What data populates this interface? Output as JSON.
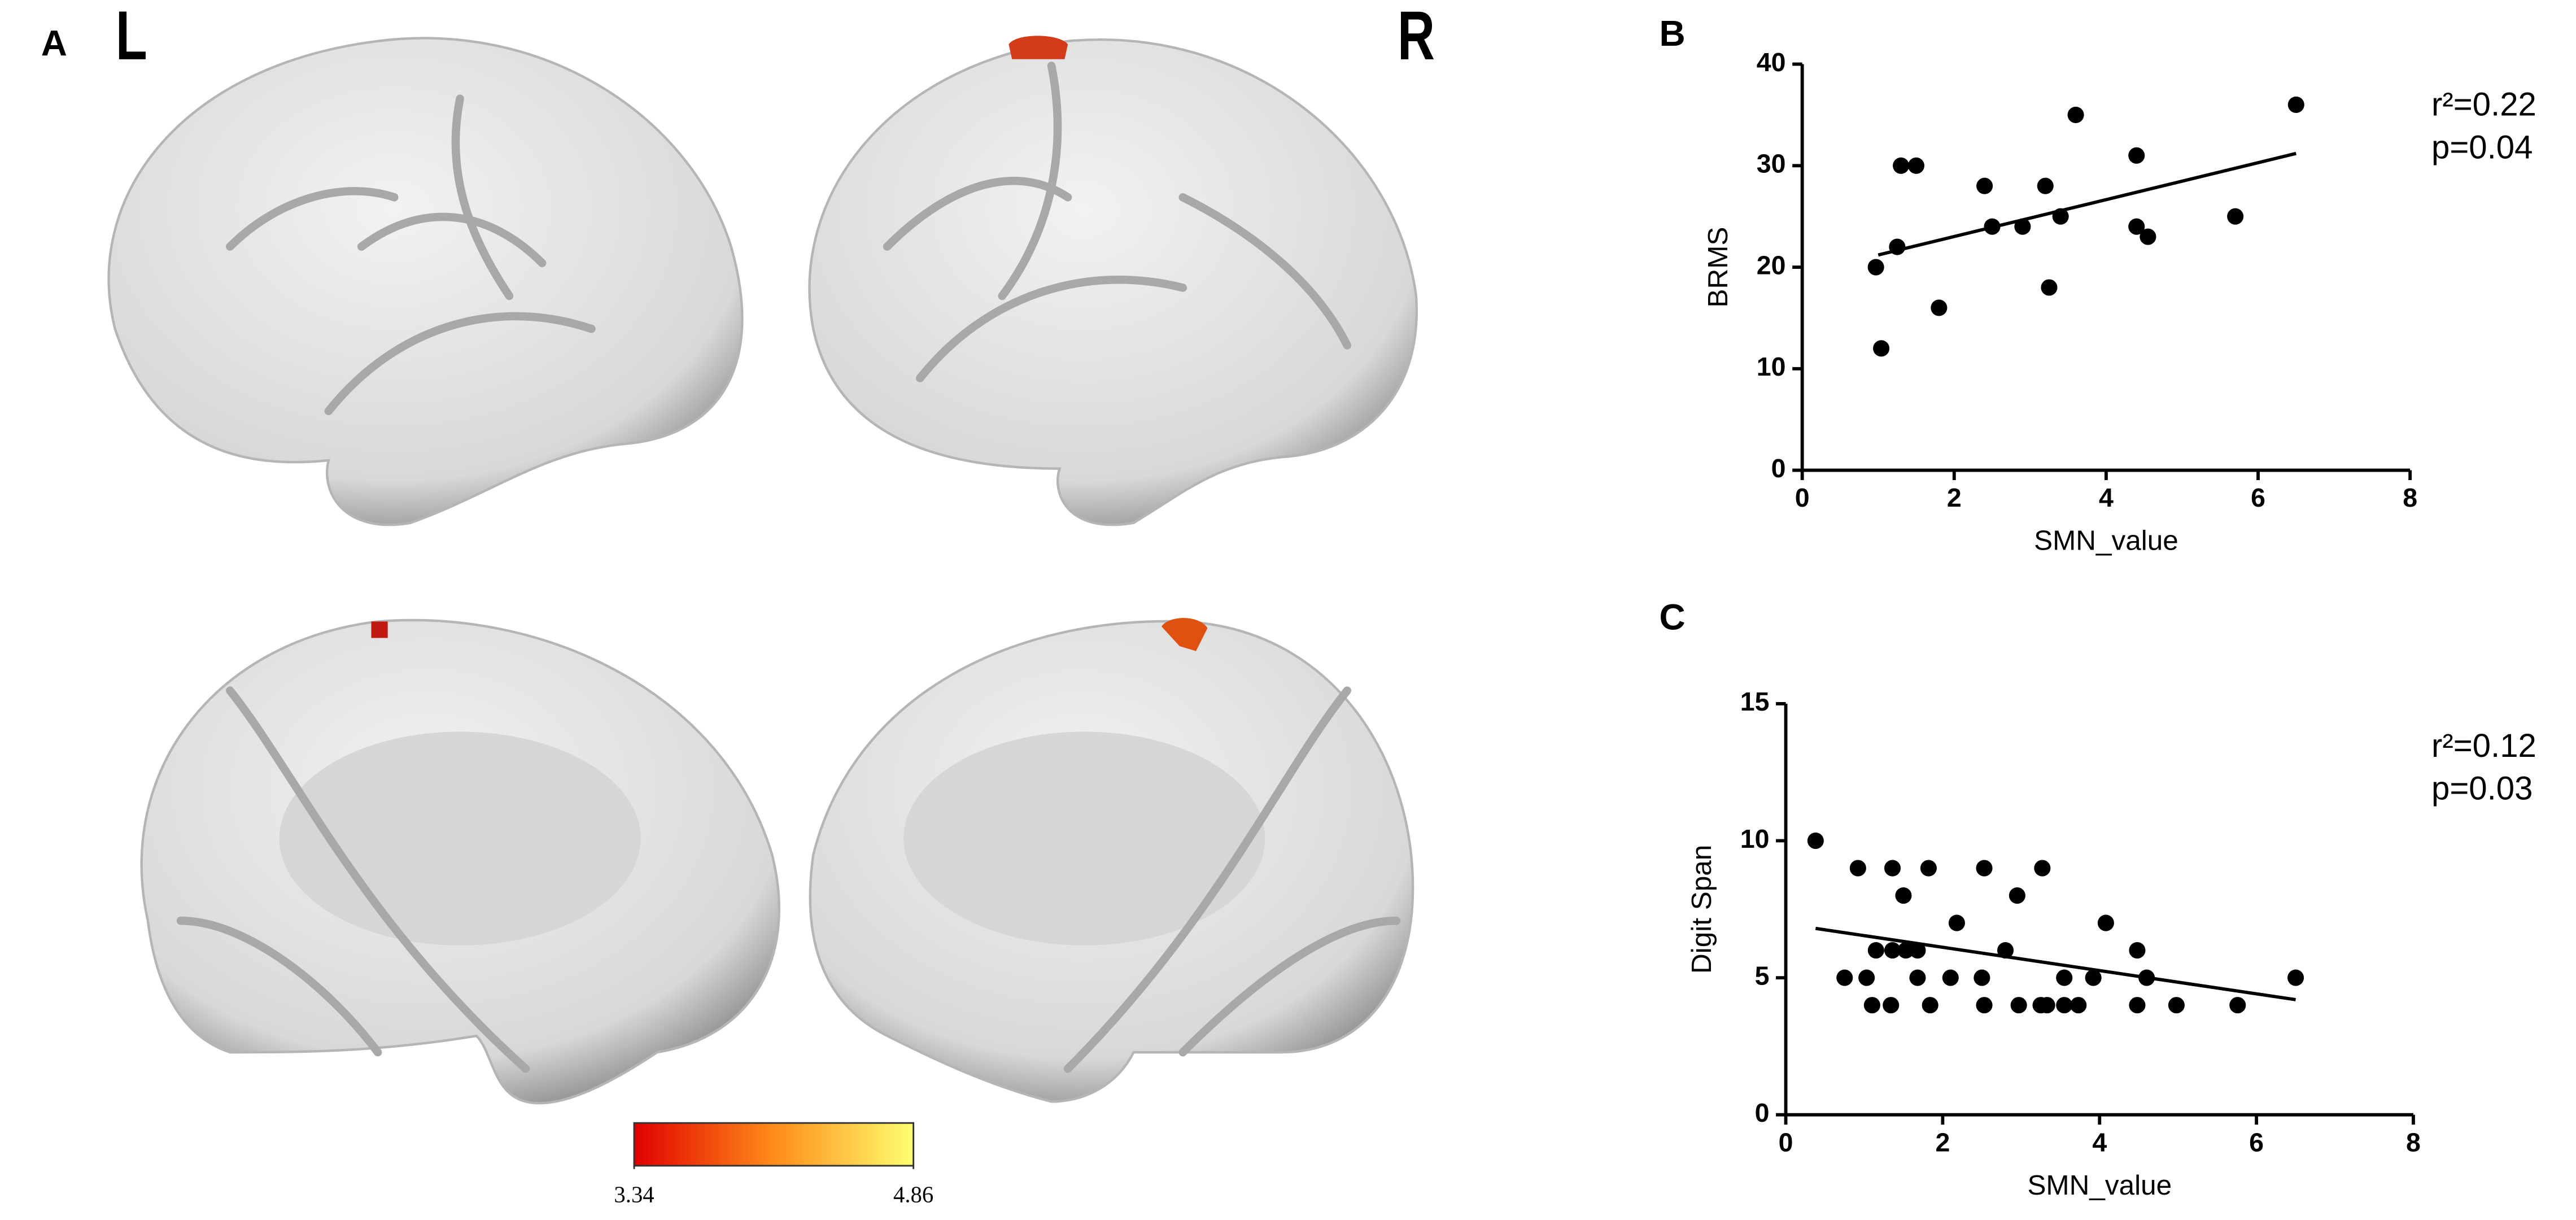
{
  "chart_data": [
    {
      "type": "brain-map",
      "panel_label": "A",
      "hemisphere_labels": [
        "L",
        "R"
      ],
      "colorbar": {
        "lim": [
          3.34,
          4.86
        ],
        "ticks": [
          3.34,
          4.86
        ],
        "colors": [
          "#e00000",
          "#ff8c1a",
          "#ffff70"
        ]
      }
    },
    {
      "type": "scatter",
      "panel_label": "B",
      "x_label": "SMN_value",
      "y_label": "BRMS",
      "annotations": [
        "r²=0.22",
        "p=0.04"
      ],
      "color": "#000000",
      "xlim": [
        0,
        8
      ],
      "xticks": [
        0,
        2,
        4,
        6,
        8
      ],
      "ylim": [
        0,
        40
      ],
      "yticks": [
        0,
        10,
        20,
        30,
        40
      ],
      "x": [
        0.97,
        1.04,
        1.25,
        1.3,
        1.5,
        1.8,
        2.4,
        2.5,
        2.9,
        3.2,
        3.25,
        3.4,
        3.6,
        4.4,
        4.4,
        4.55,
        5.7,
        6.5
      ],
      "values": [
        20,
        12,
        22,
        30,
        30,
        16,
        28,
        24,
        24,
        28,
        18,
        25,
        35,
        31,
        24,
        23,
        25,
        36
      ],
      "fit": {
        "x": [
          1.0,
          6.5
        ],
        "y": [
          21.2,
          31.2
        ]
      }
    },
    {
      "type": "scatter",
      "panel_label": "C",
      "x_label": "SMN_value",
      "y_label": "Digit Span",
      "annotations": [
        "r²=0.12",
        "p=0.03"
      ],
      "color": "#000000",
      "xlim": [
        0,
        8
      ],
      "xticks": [
        0,
        2,
        4,
        6,
        8
      ],
      "ylim": [
        0,
        15
      ],
      "yticks": [
        0,
        5,
        10,
        15
      ],
      "x": [
        0.38,
        0.92,
        1.36,
        1.82,
        2.53,
        3.27,
        1.5,
        2.95,
        2.18,
        4.08,
        2.8,
        4.48,
        1.15,
        1.36,
        1.53,
        1.68,
        0.75,
        1.03,
        1.68,
        2.1,
        2.5,
        3.55,
        3.92,
        4.6,
        6.5,
        1.1,
        1.34,
        1.84,
        2.53,
        2.97,
        3.33,
        3.55,
        3.73,
        3.25,
        4.48,
        4.98,
        5.76
      ],
      "values": [
        10,
        9,
        9,
        9,
        9,
        9,
        8,
        8,
        7,
        7,
        6,
        6,
        6,
        6,
        6,
        6,
        5,
        5,
        5,
        5,
        5,
        5,
        5,
        5,
        5,
        4,
        4,
        4,
        4,
        4,
        4,
        4,
        4,
        4,
        4,
        4,
        4
      ],
      "fit": {
        "x": [
          0.38,
          6.5
        ],
        "y": [
          6.8,
          4.2
        ]
      }
    }
  ]
}
